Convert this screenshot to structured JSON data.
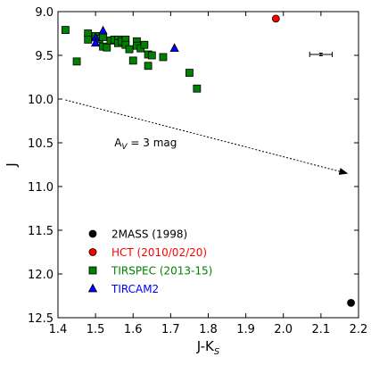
{
  "chart_data": {
    "type": "scatter",
    "xlabel": "J-K",
    "xlabel_sub": "S",
    "ylabel": "J",
    "xlim": [
      1.4,
      2.2
    ],
    "ylim": [
      12.5,
      9.0
    ],
    "y_inverted": true,
    "grid": false,
    "x_ticks": [
      "1.4",
      "1.5",
      "1.6",
      "1.7",
      "1.8",
      "1.9",
      "2.0",
      "2.1",
      "2.2"
    ],
    "y_ticks": [
      "9.0",
      "9.5",
      "10.0",
      "10.5",
      "11.0",
      "11.5",
      "12.0",
      "12.5"
    ],
    "legend_position": "lower-left",
    "series": [
      {
        "name": "2MASS (1998)",
        "marker": "circle",
        "color": "#000000",
        "points": [
          [
            2.18,
            12.33
          ]
        ]
      },
      {
        "name": "HCT (2010/02/20)",
        "marker": "circle",
        "color": "#ff0000",
        "points": [
          [
            1.98,
            9.08
          ]
        ]
      },
      {
        "name": "TIRSPEC (2013-15)",
        "marker": "square",
        "color": "#008000",
        "points": [
          [
            1.42,
            9.21
          ],
          [
            1.45,
            9.57
          ],
          [
            1.48,
            9.25
          ],
          [
            1.48,
            9.32
          ],
          [
            1.5,
            9.28
          ],
          [
            1.51,
            9.31
          ],
          [
            1.52,
            9.29
          ],
          [
            1.52,
            9.4
          ],
          [
            1.53,
            9.41
          ],
          [
            1.54,
            9.33
          ],
          [
            1.55,
            9.32
          ],
          [
            1.56,
            9.32
          ],
          [
            1.56,
            9.36
          ],
          [
            1.57,
            9.34
          ],
          [
            1.58,
            9.32
          ],
          [
            1.58,
            9.38
          ],
          [
            1.59,
            9.43
          ],
          [
            1.6,
            9.56
          ],
          [
            1.61,
            9.34
          ],
          [
            1.61,
            9.39
          ],
          [
            1.62,
            9.42
          ],
          [
            1.63,
            9.38
          ],
          [
            1.64,
            9.62
          ],
          [
            1.64,
            9.49
          ],
          [
            1.65,
            9.5
          ],
          [
            1.68,
            9.52
          ],
          [
            1.75,
            9.7
          ],
          [
            1.77,
            9.88
          ]
        ]
      },
      {
        "name": "TIRCAM2",
        "marker": "triangle",
        "color": "#0000ff",
        "points": [
          [
            1.5,
            9.3
          ],
          [
            1.5,
            9.36
          ],
          [
            1.52,
            9.22
          ],
          [
            1.71,
            9.42
          ]
        ]
      }
    ],
    "error_bar": {
      "x": 2.1,
      "y": 9.49,
      "xerr": 0.03,
      "yerr": 0.015
    },
    "annotations": {
      "reddening_vector": {
        "from": [
          1.42,
          10.01
        ],
        "to": [
          2.17,
          10.85
        ]
      },
      "vector_label": {
        "prefix": "A",
        "sub": "V",
        "suffix": " = 3 mag",
        "x": 1.55,
        "y": 10.54
      }
    }
  }
}
